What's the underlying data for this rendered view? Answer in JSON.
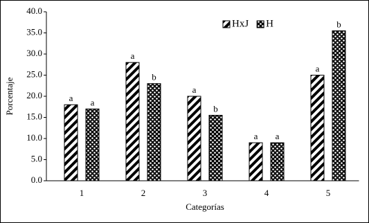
{
  "chart_data": {
    "type": "bar",
    "x_label": "Categorías",
    "y_label": "Porcentaje",
    "categories": [
      "1",
      "2",
      "3",
      "4",
      "5"
    ],
    "series": [
      {
        "name": "HxJ",
        "color": "#000000",
        "pattern": "stripes",
        "values": [
          18,
          28,
          20,
          9,
          25
        ],
        "letters": [
          "a",
          "a",
          "a",
          "a",
          "a"
        ]
      },
      {
        "name": "H",
        "color": "#000000",
        "pattern": "checker",
        "values": [
          17,
          23,
          15.5,
          9,
          35.5
        ],
        "letters": [
          "a",
          "b",
          "b",
          "a",
          "b"
        ]
      }
    ],
    "ylim": [
      0,
      40
    ],
    "yticks": [
      {
        "value": 0,
        "label": "0.0"
      },
      {
        "value": 5,
        "label": "5.0"
      },
      {
        "value": 10,
        "label": "10.0"
      },
      {
        "value": 15,
        "label": "15.0"
      },
      {
        "value": 20,
        "label": "20.0"
      },
      {
        "value": 25,
        "label": "25.0"
      },
      {
        "value": 30,
        "label": "30.0"
      },
      {
        "value": 35,
        "label": "35.0"
      },
      {
        "value": 40,
        "label": "40.0"
      }
    ],
    "legend": "top-right"
  }
}
